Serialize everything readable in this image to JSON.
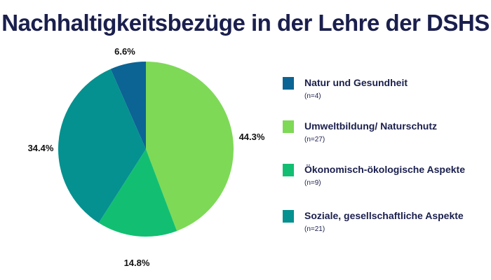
{
  "chart_data": {
    "type": "pie",
    "title": "Nachhaltigkeitsbezüge in der Lehre der DSHS",
    "slices": [
      {
        "label": "Natur und Gesundheit",
        "n": "(n=4)",
        "value": 6.6,
        "value_label": "6.6%",
        "color": "#0b6494"
      },
      {
        "label": "Umweltbildung/ Naturschutz",
        "n": "(n=27)",
        "value": 44.3,
        "value_label": "44.3%",
        "color": "#7ed957"
      },
      {
        "label": "Ökonomisch-ökologische Aspekte",
        "n": "(n=9)",
        "value": 14.8,
        "value_label": "14.8%",
        "color": "#12bf72"
      },
      {
        "label": "Soziale, gesellschaftliche Aspekte",
        "n": "(n=21)",
        "value": 34.4,
        "value_label": "34.4%",
        "color": "#05918f"
      }
    ],
    "legend_position": "right"
  }
}
